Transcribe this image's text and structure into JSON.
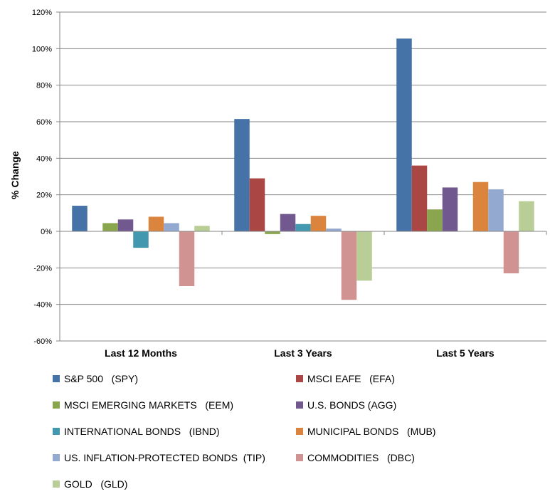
{
  "chart_data": {
    "type": "bar",
    "ylabel": "% Change",
    "ylim": [
      -60,
      120
    ],
    "yticks": [
      -60,
      -40,
      -20,
      0,
      20,
      40,
      60,
      80,
      100,
      120
    ],
    "ytick_labels": [
      "-60%",
      "-40%",
      "-20%",
      "0%",
      "20%",
      "40%",
      "60%",
      "80%",
      "100%",
      "120%"
    ],
    "grid": true,
    "legend_position": "bottom",
    "categories": [
      "Last 12 Months",
      "Last 3 Years",
      "Last 5 Years"
    ],
    "series": [
      {
        "name": "S&P 500   (SPY)",
        "color": "#4572A7",
        "values": [
          14,
          61.5,
          105.5
        ]
      },
      {
        "name": "MSCI EAFE   (EFA)",
        "color": "#AA4643",
        "values": [
          0,
          29,
          36
        ]
      },
      {
        "name": "MSCI EMERGING MARKETS   (EEM)",
        "color": "#89A54E",
        "values": [
          4.5,
          -1.5,
          12
        ]
      },
      {
        "name": "U.S. BONDS (AGG)",
        "color": "#71588F",
        "values": [
          6.5,
          9.5,
          24
        ]
      },
      {
        "name": "INTERNATIONAL BONDS   (IBND)",
        "color": "#4198AF",
        "values": [
          -9,
          4,
          0
        ]
      },
      {
        "name": "MUNICIPAL BONDS   (MUB)",
        "color": "#DB843D",
        "values": [
          8,
          8.5,
          27
        ]
      },
      {
        "name": "US. INFLATION-PROTECTED BONDS  (TIP)",
        "color": "#93A9CF",
        "values": [
          4.5,
          1.5,
          23
        ]
      },
      {
        "name": "COMMODITIES   (DBC)",
        "color": "#D19392",
        "values": [
          -30,
          -37.5,
          -23
        ]
      },
      {
        "name": "GOLD   (GLD)",
        "color": "#B9CD96",
        "values": [
          3,
          -27,
          16.5
        ]
      }
    ]
  }
}
